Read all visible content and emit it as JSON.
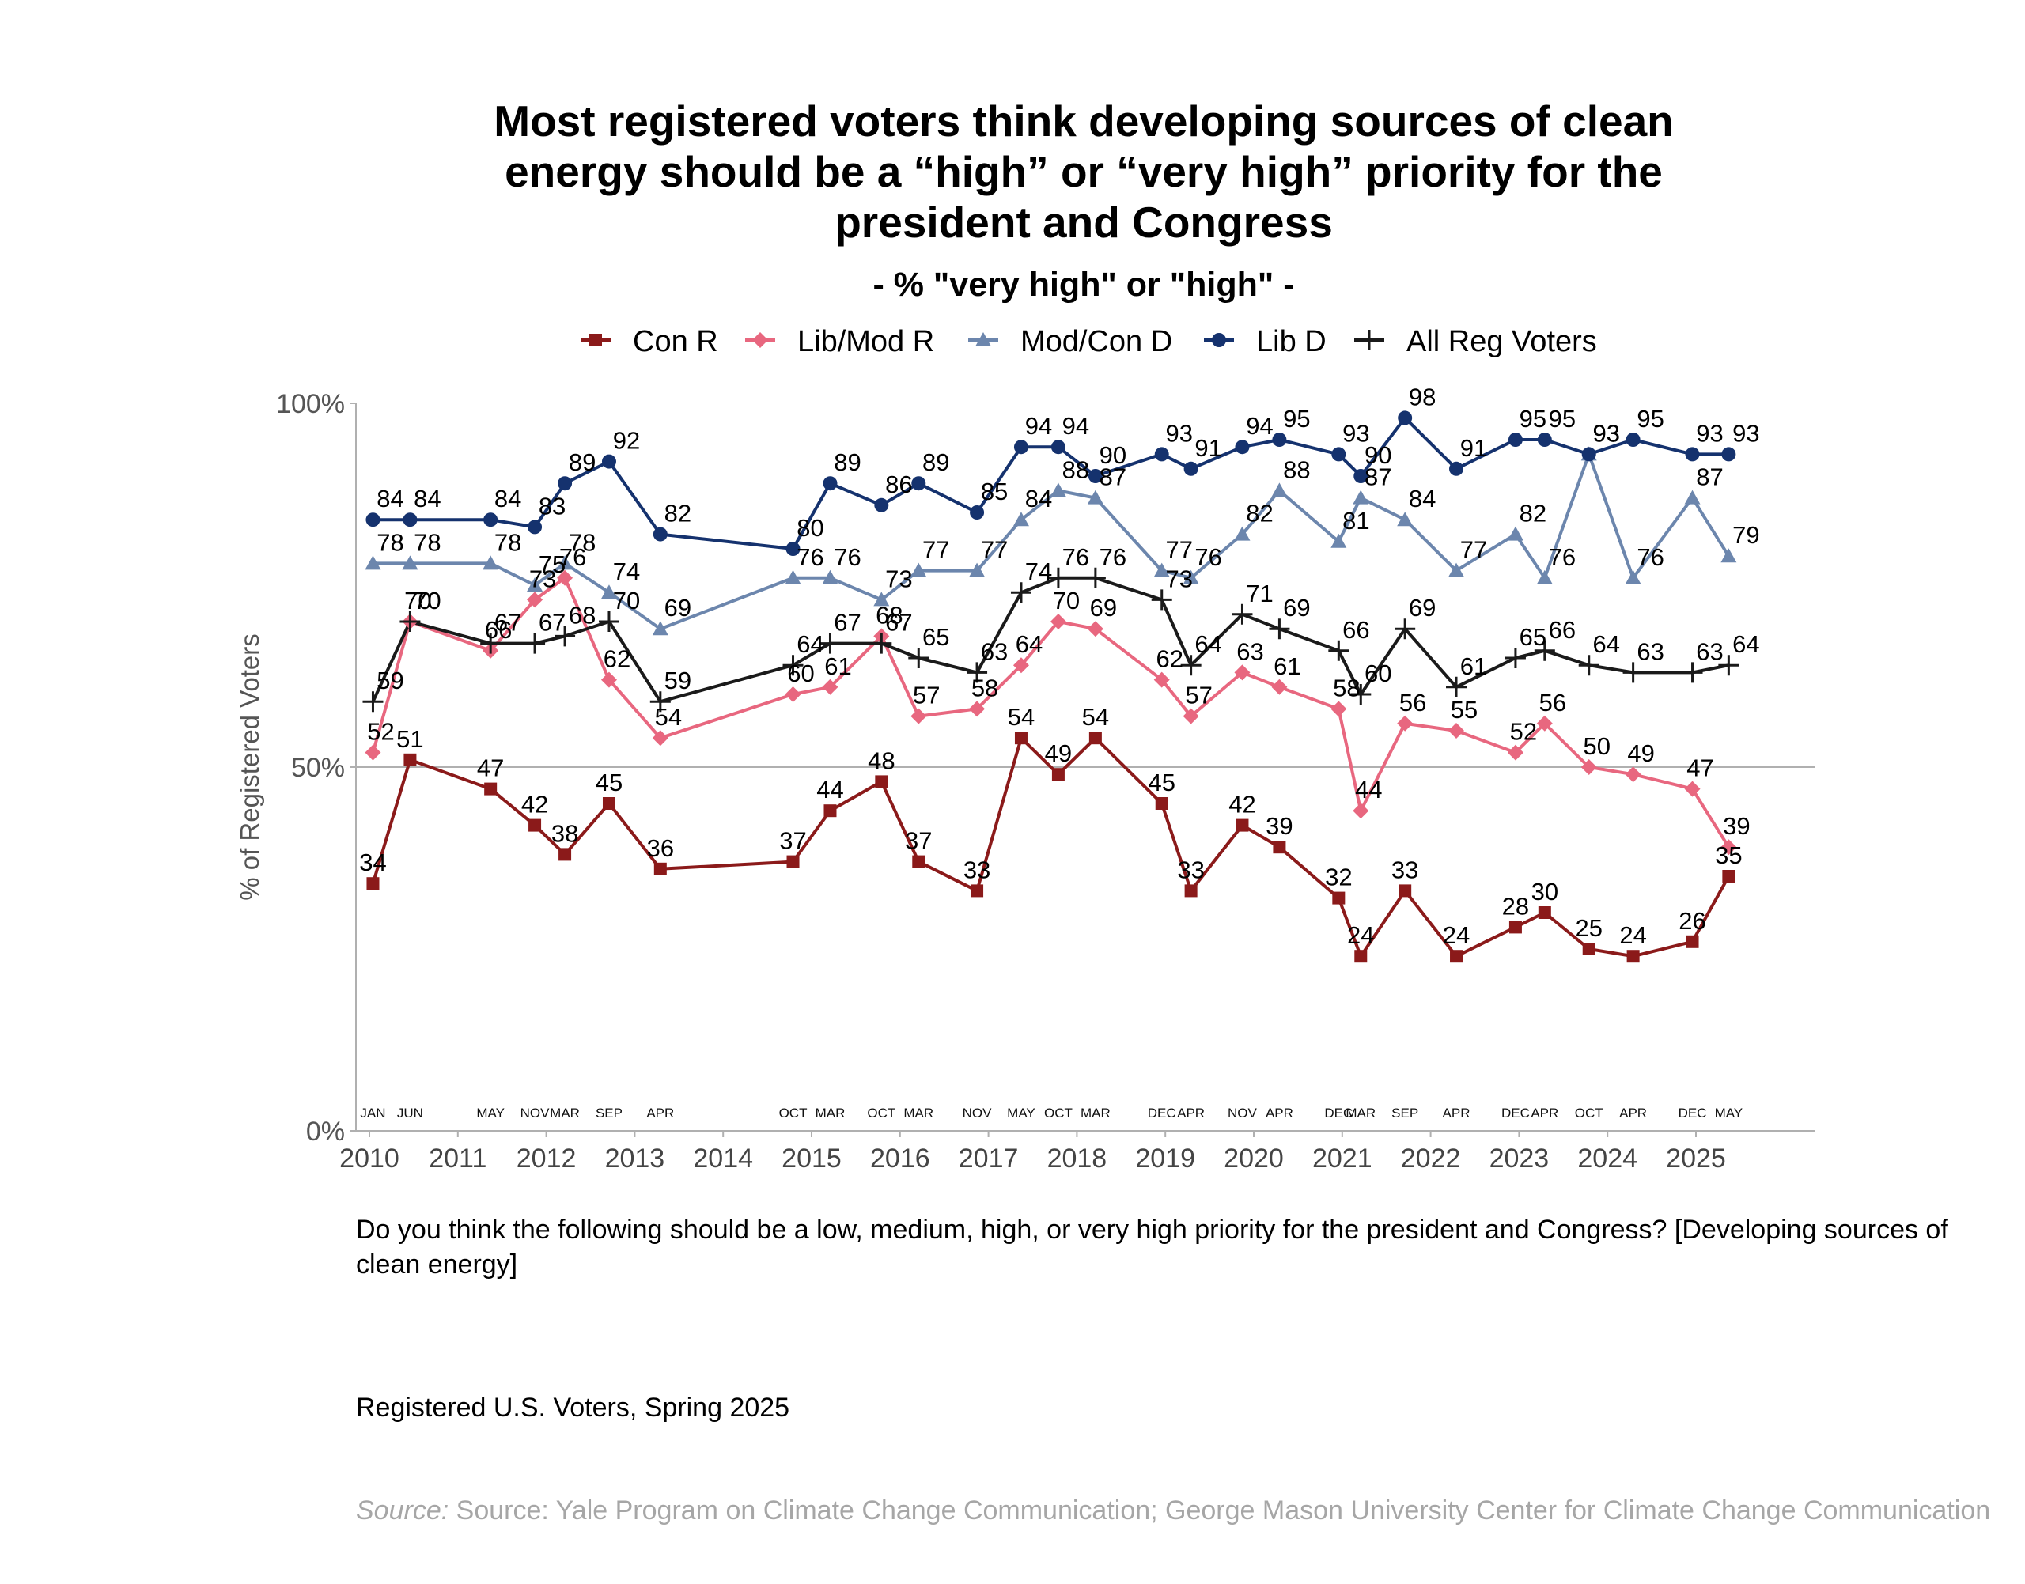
{
  "title_lines": [
    "Most registered voters think developing sources of clean",
    "energy should be a “high” or “very high” priority for the",
    "president and Congress"
  ],
  "subtitle": "- % \"very high\" or \"high\" -",
  "question": "Do you think the following should be a low, medium, high, or very high priority for the president and Congress? [Developing sources of clean energy]",
  "sample": "Registered U.S. Voters, Spring 2025",
  "source_prefix": "Source:",
  "source_text": "Source: Yale Program on Climate Change Communication; George Mason University Center for Climate Change Communication",
  "chart_data": {
    "type": "line",
    "ylabel": "% of Registered Voters",
    "ylim": [
      0,
      100
    ],
    "yticks": [
      "0%",
      "50%",
      "100%"
    ],
    "xlim": [
      2010,
      2026
    ],
    "xticks": [
      "2010",
      "2011",
      "2012",
      "2013",
      "2014",
      "2015",
      "2016",
      "2017",
      "2018",
      "2019",
      "2020",
      "2021",
      "2022",
      "2023",
      "2024",
      "2025"
    ],
    "reference_line": 50,
    "legend_position": "top",
    "surveys": [
      {
        "month": "JAN",
        "x": 2010.04
      },
      {
        "month": "JUN",
        "x": 2010.46
      },
      {
        "month": "MAY",
        "x": 2011.37
      },
      {
        "month": "NOV",
        "x": 2011.87
      },
      {
        "month": "MAR",
        "x": 2012.21
      },
      {
        "month": "SEP",
        "x": 2012.71
      },
      {
        "month": "APR",
        "x": 2013.29
      },
      {
        "month": "OCT",
        "x": 2014.79
      },
      {
        "month": "MAR",
        "x": 2015.21
      },
      {
        "month": "OCT",
        "x": 2015.79
      },
      {
        "month": "MAR",
        "x": 2016.21
      },
      {
        "month": "NOV",
        "x": 2016.87
      },
      {
        "month": "MAY",
        "x": 2017.37
      },
      {
        "month": "OCT",
        "x": 2017.79
      },
      {
        "month": "MAR",
        "x": 2018.21
      },
      {
        "month": "DEC",
        "x": 2018.96
      },
      {
        "month": "APR",
        "x": 2019.29
      },
      {
        "month": "NOV",
        "x": 2019.87
      },
      {
        "month": "APR",
        "x": 2020.29
      },
      {
        "month": "DEC",
        "x": 2020.96
      },
      {
        "month": "MAR",
        "x": 2021.21
      },
      {
        "month": "SEP",
        "x": 2021.71
      },
      {
        "month": "APR",
        "x": 2022.29
      },
      {
        "month": "DEC",
        "x": 2022.96
      },
      {
        "month": "APR",
        "x": 2023.29
      },
      {
        "month": "OCT",
        "x": 2023.79
      },
      {
        "month": "APR",
        "x": 2024.29
      },
      {
        "month": "DEC",
        "x": 2024.96
      },
      {
        "month": "MAY",
        "x": 2025.37
      }
    ],
    "series": [
      {
        "name": "Con R",
        "color": "#8b1a1a",
        "marker": "square",
        "values": [
          34,
          51,
          47,
          42,
          38,
          45,
          36,
          37,
          44,
          48,
          37,
          33,
          54,
          49,
          54,
          45,
          33,
          42,
          39,
          32,
          24,
          33,
          24,
          28,
          30,
          25,
          24,
          26,
          35
        ]
      },
      {
        "name": "Lib/Mod R",
        "color": "#e8677f",
        "marker": "diamond",
        "values": [
          52,
          70,
          66,
          73,
          76,
          62,
          54,
          60,
          61,
          68,
          57,
          58,
          64,
          70,
          69,
          62,
          57,
          63,
          61,
          58,
          44,
          56,
          55,
          52,
          56,
          50,
          49,
          47,
          39
        ]
      },
      {
        "name": "Mod/Con D",
        "color": "#6c86ad",
        "marker": "triangle",
        "values": [
          78,
          78,
          78,
          75,
          78,
          74,
          69,
          76,
          76,
          73,
          77,
          77,
          84,
          88,
          87,
          77,
          76,
          82,
          88,
          81,
          87,
          84,
          77,
          82,
          76,
          93,
          76,
          87,
          79
        ]
      },
      {
        "name": "Lib D",
        "color": "#15326e",
        "marker": "circle",
        "values": [
          84,
          84,
          84,
          83,
          89,
          92,
          82,
          80,
          89,
          86,
          89,
          85,
          94,
          94,
          90,
          93,
          91,
          94,
          95,
          93,
          90,
          98,
          91,
          95,
          95,
          93,
          95,
          93,
          93
        ]
      },
      {
        "name": "All Reg Voters",
        "color": "#1a1a1a",
        "marker": "plus",
        "values": [
          59,
          70,
          67,
          67,
          68,
          70,
          59,
          64,
          67,
          67,
          65,
          63,
          74,
          76,
          76,
          73,
          64,
          71,
          69,
          66,
          60,
          69,
          61,
          65,
          66,
          64,
          63,
          63,
          64
        ]
      }
    ]
  }
}
